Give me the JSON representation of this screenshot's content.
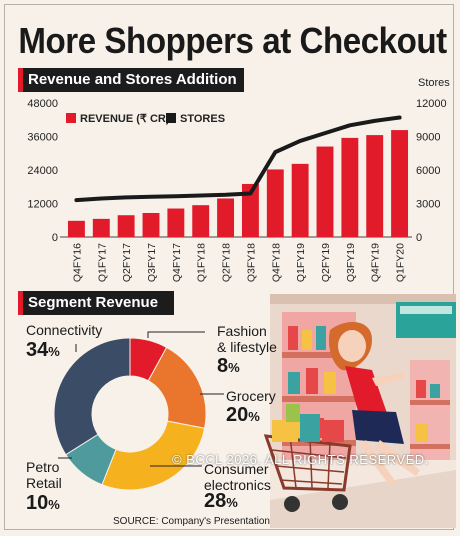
{
  "title": "More Shoppers at Checkout",
  "source": "SOURCE: Company's Presentation",
  "copyright": "© BCCL 2026. ALL RIGHTS RESERVED.",
  "colors": {
    "revenue": "#e11b2a",
    "stores": "#1a1a1a",
    "accent": "#e11b2a"
  },
  "chart_data": [
    {
      "type": "bar",
      "title": "Revenue and Stores Addition",
      "categories": [
        "Q4FY16",
        "Q1FY17",
        "Q2FY17",
        "Q3FY17",
        "Q4FY17",
        "Q1FY18",
        "Q2FY18",
        "Q3FY18",
        "Q4FY18",
        "Q1FY19",
        "Q2FY19",
        "Q3FY19",
        "Q4FY19",
        "Q1FY20"
      ],
      "left_axis": {
        "ticks": [
          "0",
          "12000",
          "24000",
          "36000",
          "48000"
        ],
        "range": [
          0,
          48000
        ]
      },
      "right_axis": {
        "label": "Stores",
        "ticks": [
          "0",
          "3000",
          "6000",
          "9000",
          "12000"
        ],
        "range": [
          0,
          12000
        ]
      },
      "series": [
        {
          "name": "REVENUE (₹ CR)",
          "type": "bar",
          "axis": "left",
          "values": [
            5800,
            6500,
            7800,
            8600,
            10200,
            11400,
            13800,
            19000,
            24200,
            26200,
            32400,
            35500,
            36500,
            38300
          ]
        },
        {
          "name": "STORES",
          "type": "line",
          "axis": "right",
          "values": [
            3300,
            3450,
            3550,
            3600,
            3650,
            3720,
            3780,
            3900,
            7600,
            8600,
            9300,
            10000,
            10400,
            10700
          ]
        }
      ],
      "grid": false,
      "legend": "top-left"
    },
    {
      "type": "pie",
      "title": "Segment Revenue",
      "donut": true,
      "slices": [
        {
          "label": "Fashion & lifestyle",
          "label_lines": [
            "Fashion",
            "& lifestyle"
          ],
          "value": 8,
          "pct": "8",
          "color": "#e11b2a"
        },
        {
          "label": "Grocery",
          "label_lines": [
            "Grocery"
          ],
          "value": 20,
          "pct": "20",
          "color": "#e9762c"
        },
        {
          "label": "Consumer electronics",
          "label_lines": [
            "Consumer",
            "electronics"
          ],
          "value": 28,
          "pct": "28",
          "color": "#f6b21e"
        },
        {
          "label": "Petro Retail",
          "label_lines": [
            "Petro",
            "Retail"
          ],
          "value": 10,
          "pct": "10",
          "color": "#4e9a9c"
        },
        {
          "label": "Connectivity",
          "label_lines": [
            "Connectivity"
          ],
          "value": 34,
          "pct": "34",
          "color": "#3b4d66"
        }
      ]
    }
  ]
}
